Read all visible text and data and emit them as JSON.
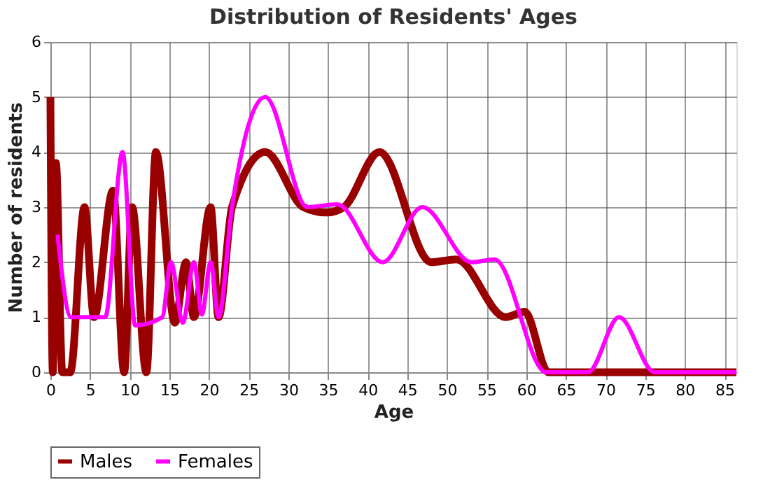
{
  "chart_data": {
    "type": "line",
    "title": "Distribution of Residents' Ages",
    "xlabel": "Age",
    "ylabel": "Number of residents",
    "xlim": [
      0,
      86.5
    ],
    "xticks": [
      0,
      5,
      10,
      15,
      20,
      25,
      30,
      35,
      40,
      45,
      50,
      55,
      60,
      65,
      70,
      75,
      80,
      85
    ],
    "ylim": [
      0,
      6
    ],
    "yticks": [
      0,
      1,
      2,
      3,
      4,
      5,
      6
    ],
    "grid": true,
    "legend": "bottom",
    "line_style": "solid",
    "marker": "none",
    "series": [
      {
        "name": "Males",
        "color": "#990000",
        "x": [
          0,
          0.3,
          0.7,
          1.5,
          2.5,
          4.3,
          5.5,
          7.9,
          9.3,
          10.3,
          12.1,
          13.3,
          15.7,
          17.1,
          18.1,
          20.2,
          21.2,
          22.9,
          27.1,
          31.9,
          34.8,
          37,
          41.5,
          48,
          51.2,
          57.4,
          59.8,
          62.8,
          86.5
        ],
        "values": [
          5,
          0,
          3.8,
          0,
          0,
          3,
          1,
          3.3,
          0,
          3,
          0,
          4,
          0.9,
          2,
          1,
          3,
          1,
          3,
          4,
          3,
          2.9,
          3,
          4,
          2,
          2.05,
          1,
          1.1,
          0,
          0
        ]
      },
      {
        "name": "Females",
        "color": "#ff00ff",
        "x": [
          0.9,
          2.6,
          6.9,
          9.1,
          10.7,
          14.1,
          15.2,
          16.7,
          18.1,
          19.1,
          20.2,
          21.2,
          22.9,
          27.1,
          32.4,
          36.2,
          41.9,
          46.9,
          53.1,
          56,
          62.5,
          67.8,
          71.7,
          76.2,
          86.5
        ],
        "values": [
          2.5,
          1,
          1,
          4,
          0.85,
          1,
          2,
          0.9,
          2,
          1.05,
          2,
          1,
          3,
          5,
          3,
          3.05,
          2,
          3,
          2,
          2.05,
          0,
          0,
          1,
          0,
          0
        ]
      }
    ]
  }
}
